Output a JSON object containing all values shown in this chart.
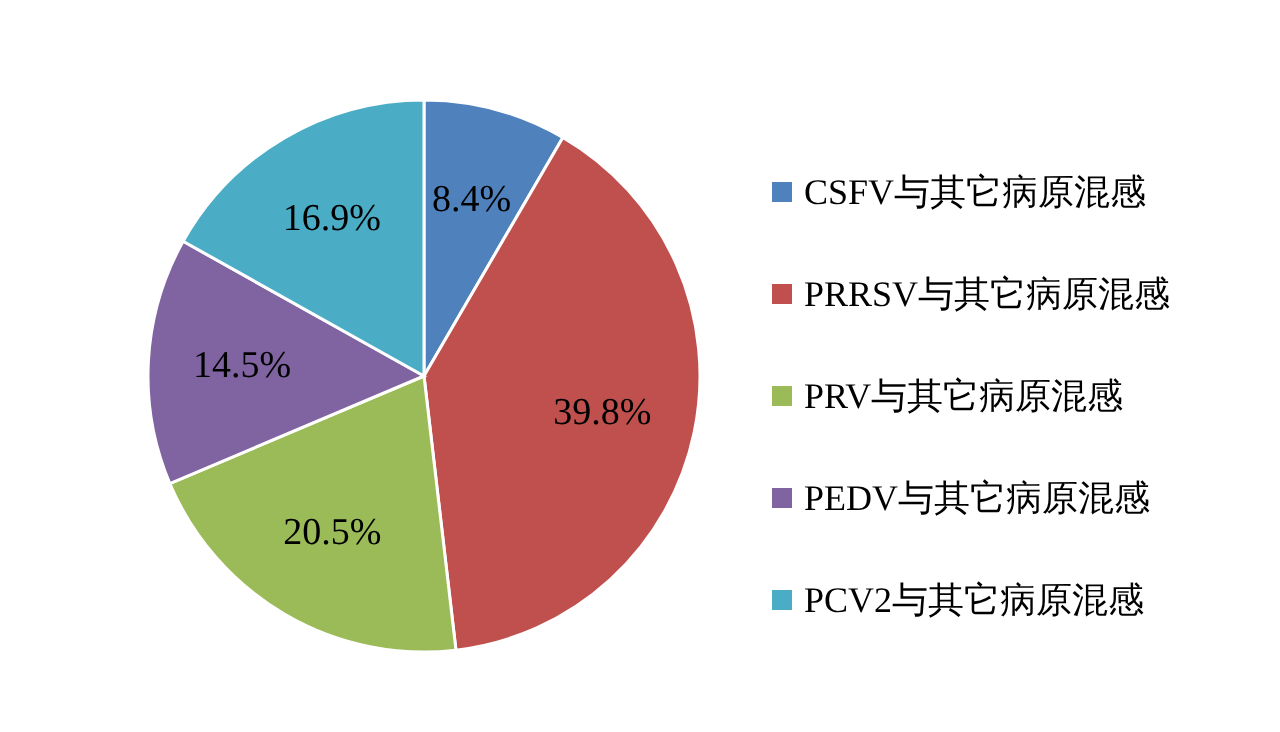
{
  "chart_data": {
    "type": "pie",
    "categories": [
      "CSFV与其它病原混感",
      "PRRSV与其它病原混感",
      "PRV与其它病原混感",
      "PEDV与其它病原混感",
      "PCV2与其它病原混感"
    ],
    "values": [
      8.4,
      39.8,
      20.5,
      14.5,
      16.9
    ],
    "value_labels": [
      "8.4%",
      "39.8%",
      "20.5%",
      "14.5%",
      "16.9%"
    ],
    "colors": [
      "#4f81bd",
      "#c0504d",
      "#9bbb59",
      "#8064a2",
      "#4bacc6"
    ],
    "legend": "right"
  }
}
